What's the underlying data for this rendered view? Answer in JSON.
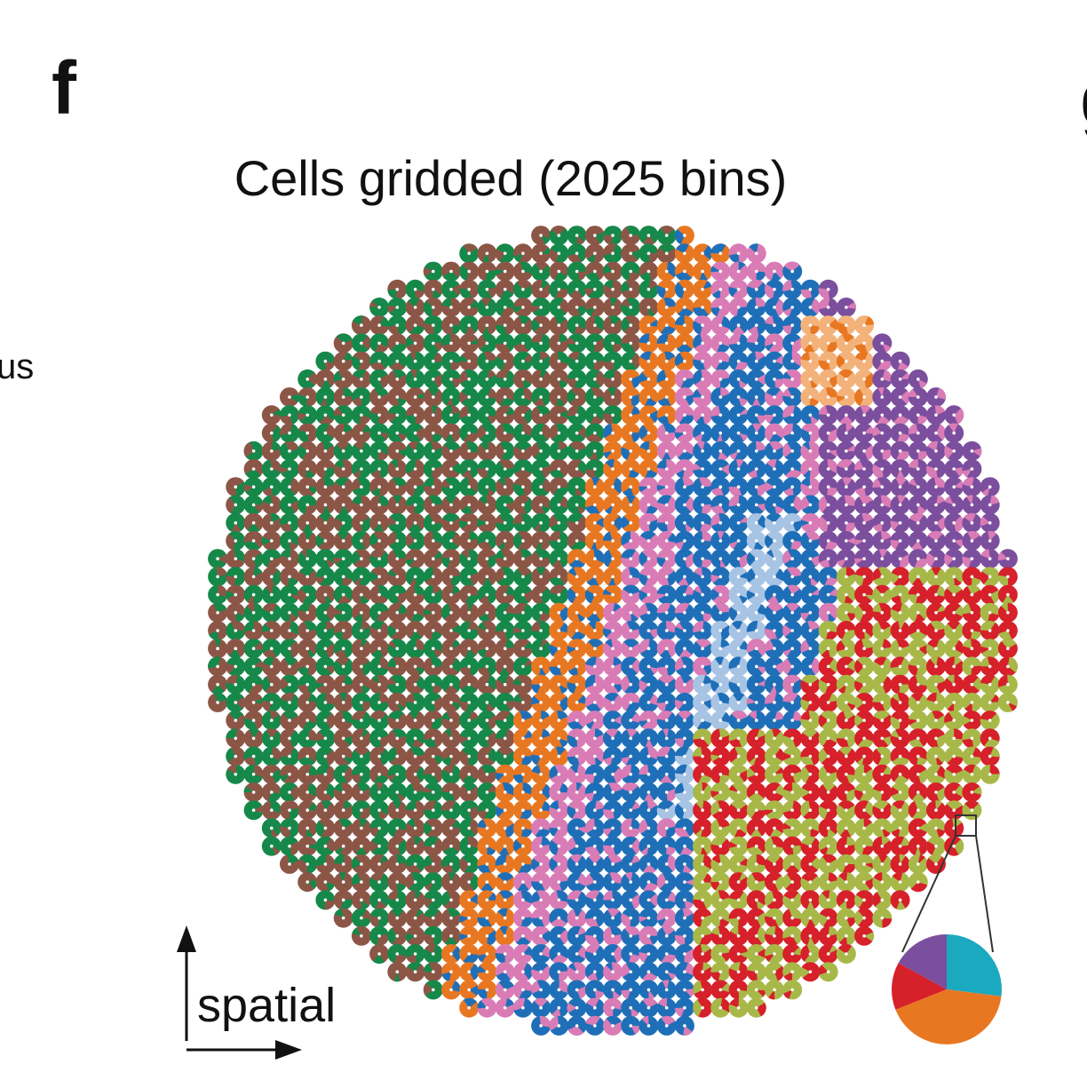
{
  "panel_labels": [
    "f",
    "g"
  ],
  "title": "Cells gridded (2025 bins)",
  "side_text": "us",
  "axis_label": "spatial",
  "inset_pie": {
    "type": "pie",
    "values": [
      27,
      42,
      14,
      17
    ],
    "colors": [
      "#1aa9bf",
      "#e87722",
      "#d6202a",
      "#7b4f9e"
    ]
  }
}
